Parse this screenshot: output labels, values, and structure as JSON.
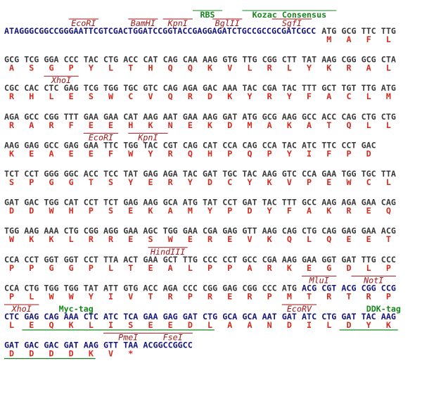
{
  "colors": {
    "insert": "#3a3a3a",
    "vector": "#16167a",
    "amino_acid": "#d42a1e",
    "site": "#a3161a",
    "feature": "#18861d"
  },
  "lines": [
    {
      "vector_prefix": "ATAGGGCGGCCGGGAATTCGTCGACTGGATCCGGTACCGAGGAGATCTGCCGCCGCGATCGCC",
      "codons": [
        "ATG",
        "GCG",
        "TTC",
        "TTG"
      ],
      "amino_acids": [
        "M",
        "A",
        "F",
        "L"
      ],
      "sites": [
        "EcoRI",
        "BamHI",
        "KpnI",
        "BglII",
        "SgfI"
      ],
      "features": [
        "RBS",
        "Kozac Consensus"
      ]
    },
    {
      "codons": [
        "GCG",
        "TCG",
        "GGA",
        "CCC",
        "TAC",
        "CTG",
        "ACC",
        "CAT",
        "CAG",
        "CAA",
        "AAG",
        "GTG",
        "TTG",
        "CGG",
        "CTT",
        "TAT",
        "AAG",
        "CGG",
        "GCG",
        "CTA"
      ],
      "amino_acids": [
        "A",
        "S",
        "G",
        "P",
        "Y",
        "L",
        "T",
        "H",
        "Q",
        "Q",
        "K",
        "V",
        "L",
        "R",
        "L",
        "Y",
        "K",
        "R",
        "A",
        "L"
      ]
    },
    {
      "codons": [
        "CGC",
        "CAC",
        "CTC",
        "GAG",
        "TCG",
        "TGG",
        "TGC",
        "GTC",
        "CAG",
        "AGA",
        "GAC",
        "AAA",
        "TAC",
        "CGA",
        "TAC",
        "TTT",
        "GCT",
        "TGT",
        "TTG",
        "ATG"
      ],
      "amino_acids": [
        "R",
        "H",
        "L",
        "E",
        "S",
        "W",
        "C",
        "V",
        "Q",
        "R",
        "D",
        "K",
        "Y",
        "R",
        "Y",
        "F",
        "A",
        "C",
        "L",
        "M"
      ],
      "sites": [
        "XhoI"
      ]
    },
    {
      "codons": [
        "AGA",
        "GCC",
        "CGG",
        "TTT",
        "GAA",
        "GAA",
        "CAT",
        "AAG",
        "AAT",
        "GAA",
        "AAG",
        "GAT",
        "ATG",
        "GCG",
        "AAG",
        "GCC",
        "ACC",
        "CAG",
        "CTG",
        "CTG"
      ],
      "amino_acids": [
        "R",
        "A",
        "R",
        "F",
        "E",
        "E",
        "H",
        "K",
        "N",
        "E",
        "K",
        "D",
        "M",
        "A",
        "K",
        "A",
        "T",
        "Q",
        "L",
        "L"
      ]
    },
    {
      "codons": [
        "AAG",
        "GAG",
        "GCC",
        "GAG",
        "GAA",
        "TTC",
        "TGG",
        "TAC",
        "CGT",
        "CAG",
        "CAT",
        "CCA",
        "CAG",
        "CCA",
        "TAC",
        "ATC",
        "TTC",
        "CCT",
        "GAC"
      ],
      "amino_acids": [
        "K",
        "E",
        "A",
        "E",
        "E",
        "F",
        "W",
        "Y",
        "R",
        "Q",
        "H",
        "P",
        "Q",
        "P",
        "Y",
        "I",
        "F",
        "P",
        "D"
      ],
      "sites": [
        "EcoRI",
        "KpnI"
      ]
    },
    {
      "codons": [
        "TCT",
        "CCT",
        "GGG",
        "GGC",
        "ACC",
        "TCC",
        "TAT",
        "GAG",
        "AGA",
        "TAC",
        "GAT",
        "TGC",
        "TAC",
        "AAG",
        "GTC",
        "CCA",
        "GAA",
        "TGG",
        "TGC",
        "TTA"
      ],
      "amino_acids": [
        "S",
        "P",
        "G",
        "G",
        "T",
        "S",
        "Y",
        "E",
        "R",
        "Y",
        "D",
        "C",
        "Y",
        "K",
        "V",
        "P",
        "E",
        "W",
        "C",
        "L"
      ]
    },
    {
      "codons": [
        "GAT",
        "GAC",
        "TGG",
        "CAT",
        "CCT",
        "TCT",
        "GAG",
        "AAG",
        "GCA",
        "ATG",
        "TAT",
        "CCT",
        "GAT",
        "TAC",
        "TTT",
        "GCC",
        "AAG",
        "AGA",
        "GAA",
        "CAG"
      ],
      "amino_acids": [
        "D",
        "D",
        "W",
        "H",
        "P",
        "S",
        "E",
        "K",
        "A",
        "M",
        "Y",
        "P",
        "D",
        "Y",
        "F",
        "A",
        "K",
        "R",
        "E",
        "Q"
      ]
    },
    {
      "codons": [
        "TGG",
        "AAG",
        "AAA",
        "CTG",
        "CGG",
        "AGG",
        "GAA",
        "AGC",
        "TGG",
        "GAA",
        "CGA",
        "GAG",
        "GTT",
        "AAG",
        "CAG",
        "CTG",
        "CAG",
        "GAG",
        "GAA",
        "ACG"
      ],
      "amino_acids": [
        "W",
        "K",
        "K",
        "L",
        "R",
        "R",
        "E",
        "S",
        "W",
        "E",
        "R",
        "E",
        "V",
        "K",
        "Q",
        "L",
        "Q",
        "E",
        "E",
        "T"
      ]
    },
    {
      "codons": [
        "CCA",
        "CCT",
        "GGT",
        "GGT",
        "CCT",
        "TTA",
        "ACT",
        "GAA",
        "GCT",
        "TTG",
        "CCC",
        "CCT",
        "GCC",
        "CGA",
        "AAG",
        "GAA",
        "GGT",
        "GAT",
        "TTG",
        "CCC"
      ],
      "amino_acids": [
        "P",
        "P",
        "G",
        "G",
        "P",
        "L",
        "T",
        "E",
        "A",
        "L",
        "P",
        "P",
        "A",
        "R",
        "K",
        "E",
        "G",
        "D",
        "L",
        "P"
      ],
      "sites": [
        "HindIII"
      ]
    },
    {
      "codons": [
        "CCA",
        "CTG",
        "TGG",
        "TGG",
        "TAT",
        "ATT",
        "GTG",
        "ACC",
        "AGA",
        "CCC",
        "CGG",
        "GAG",
        "CGG",
        "CCC",
        "ATG"
      ],
      "vector_codons": [
        "ACG",
        "CGT",
        "ACG",
        "CGG",
        "CCG"
      ],
      "amino_acids": [
        "P",
        "L",
        "W",
        "W",
        "Y",
        "I",
        "V",
        "T",
        "R",
        "P",
        "R",
        "E",
        "R",
        "P",
        "M",
        "T",
        "R",
        "T",
        "R",
        "P"
      ],
      "sites": [
        "MluI",
        "NotI"
      ]
    },
    {
      "vector_codons": [
        "CTC",
        "GAG",
        "CAG",
        "AAA",
        "CTC",
        "ATC",
        "TCA",
        "GAA",
        "GAG",
        "GAT",
        "CTG",
        "GCA",
        "GCA",
        "AAT",
        "GAT",
        "ATC",
        "CTG",
        "GAT",
        "TAC",
        "AAG"
      ],
      "amino_acids": [
        "L",
        "E",
        "Q",
        "K",
        "L",
        "I",
        "S",
        "E",
        "E",
        "D",
        "L",
        "A",
        "A",
        "N",
        "D",
        "I",
        "L",
        "D",
        "Y",
        "K"
      ],
      "sites": [
        "XhoI",
        "EcoRV"
      ],
      "features": [
        "Myc-tag",
        "DDK-tag"
      ]
    },
    {
      "vector_codons": [
        "GAT",
        "GAC",
        "GAC",
        "GAT",
        "AAG",
        "GTT",
        "TAA"
      ],
      "vector_suffix": "ACGGCCGGCC",
      "amino_acids": [
        "D",
        "D",
        "D",
        "D",
        "K",
        "V",
        "*"
      ],
      "sites": [
        "PmeI",
        "FseI"
      ]
    }
  ]
}
